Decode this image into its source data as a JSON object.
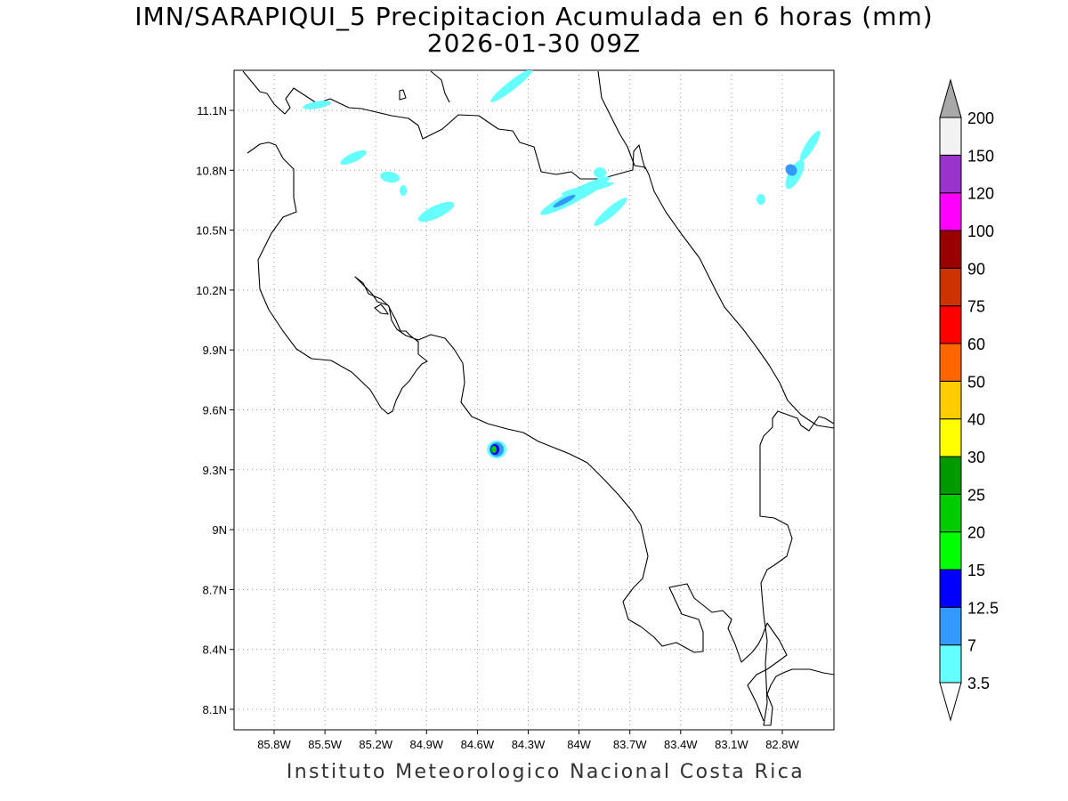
{
  "title": "IMN/SARAPIQUI_5 Precipitacion Acumulada en 6 horas (mm)",
  "subtitle": "2026-01-30 09Z",
  "credit": "Instituto Meteorologico Nacional Costa Rica",
  "map": {
    "lon_range": [
      -86.05,
      -82.55
    ],
    "lat_range": [
      8.0,
      11.3
    ],
    "x_ticks": [
      "85.8W",
      "85.5W",
      "85.2W",
      "84.9W",
      "84.6W",
      "84.3W",
      "84W",
      "83.7W",
      "83.4W",
      "83.1W",
      "82.8W"
    ],
    "y_ticks": [
      "11.1N",
      "10.8N",
      "10.5N",
      "10.2N",
      "9.9N",
      "9.6N",
      "9.3N",
      "9N",
      "8.7N",
      "8.4N",
      "8.1N"
    ],
    "grid": "dotted"
  },
  "colorbar": {
    "labels": [
      "3.5",
      "7",
      "12.5",
      "15",
      "20",
      "25",
      "30",
      "40",
      "50",
      "60",
      "75",
      "90",
      "100",
      "120",
      "150",
      "200"
    ],
    "colors": [
      "#66ffff",
      "#3399ff",
      "#0000ff",
      "#00ff00",
      "#00cc00",
      "#009900",
      "#ffff00",
      "#ffcc00",
      "#ff6600",
      "#ff0000",
      "#cc3300",
      "#990000",
      "#ff00ff",
      "#9933cc",
      "#f2f2f2"
    ],
    "over_color": "#a8a8a8",
    "under_color": "#ffffff"
  },
  "precip_color_light": "#66ffff",
  "precip_color_mid": "#3399ff"
}
